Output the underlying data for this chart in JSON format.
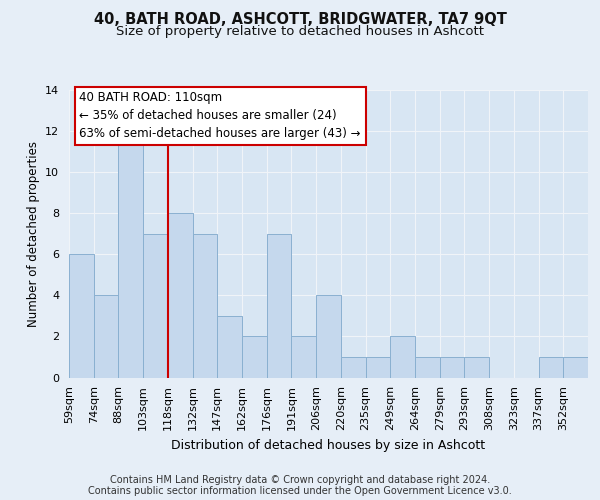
{
  "title1": "40, BATH ROAD, ASHCOTT, BRIDGWATER, TA7 9QT",
  "title2": "Size of property relative to detached houses in Ashcott",
  "xlabel": "Distribution of detached houses by size in Ashcott",
  "ylabel": "Number of detached properties",
  "bin_labels": [
    "59sqm",
    "74sqm",
    "88sqm",
    "103sqm",
    "118sqm",
    "132sqm",
    "147sqm",
    "162sqm",
    "176sqm",
    "191sqm",
    "206sqm",
    "220sqm",
    "235sqm",
    "249sqm",
    "264sqm",
    "279sqm",
    "293sqm",
    "308sqm",
    "323sqm",
    "337sqm",
    "352sqm"
  ],
  "bar_values": [
    6,
    4,
    12,
    7,
    8,
    7,
    3,
    2,
    7,
    2,
    4,
    1,
    1,
    2,
    1,
    1,
    1,
    0,
    0,
    1,
    1
  ],
  "bar_color": "#c5d8ed",
  "bar_edge_color": "#8ab0d0",
  "ylim": [
    0,
    14
  ],
  "yticks": [
    0,
    2,
    4,
    6,
    8,
    10,
    12,
    14
  ],
  "property_line_x": 4.0,
  "property_line_color": "#cc0000",
  "annotation_title": "40 BATH ROAD: 110sqm",
  "annotation_line1": "← 35% of detached houses are smaller (24)",
  "annotation_line2": "63% of semi-detached houses are larger (43) →",
  "annotation_box_facecolor": "#ffffff",
  "annotation_box_edgecolor": "#cc0000",
  "footer1": "Contains HM Land Registry data © Crown copyright and database right 2024.",
  "footer2": "Contains public sector information licensed under the Open Government Licence v3.0.",
  "bg_color": "#e6eef7",
  "plot_bg_color": "#d8e6f3",
  "grid_color": "#f0f4f8",
  "title1_fontsize": 10.5,
  "title2_fontsize": 9.5,
  "xlabel_fontsize": 9,
  "ylabel_fontsize": 8.5,
  "tick_fontsize": 8,
  "annotation_fontsize": 8.5,
  "footer_fontsize": 7
}
